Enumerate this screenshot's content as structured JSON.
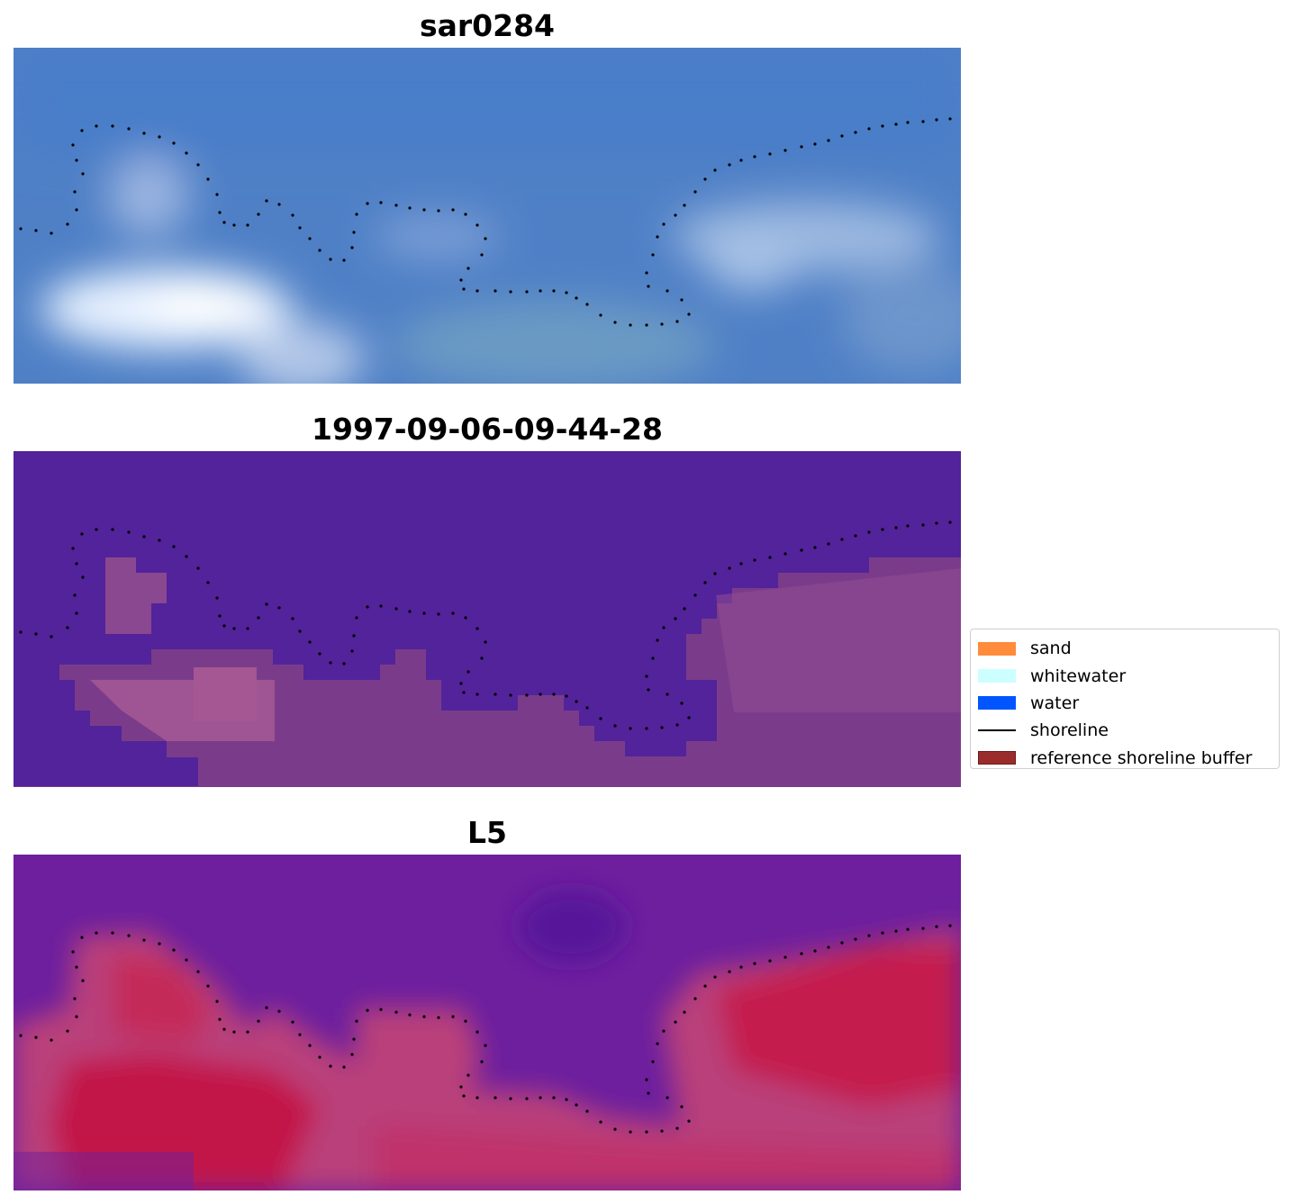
{
  "panels": [
    {
      "title": "sar0284",
      "style": "sar"
    },
    {
      "title": "1997-09-06-09-44-28",
      "style": "classified"
    },
    {
      "title": "L5",
      "style": "ndwi"
    }
  ],
  "legend": {
    "items": [
      {
        "label": "sand",
        "color": "#ff8c3b",
        "kind": "patch"
      },
      {
        "label": "whitewater",
        "color": "#ccffff",
        "kind": "patch"
      },
      {
        "label": "water",
        "color": "#0055ff",
        "kind": "patch"
      },
      {
        "label": "shoreline",
        "color": "#000000",
        "kind": "line"
      },
      {
        "label": "reference shoreline buffer",
        "color": "#9b2c2c",
        "kind": "patch"
      }
    ]
  },
  "colors": {
    "classified_water": "#52239a",
    "classified_land": "#7a3c8a",
    "sar_base": "#4d7fc8",
    "ndwi_water": "#6a1fa0",
    "ndwi_land": "#c0204e"
  }
}
